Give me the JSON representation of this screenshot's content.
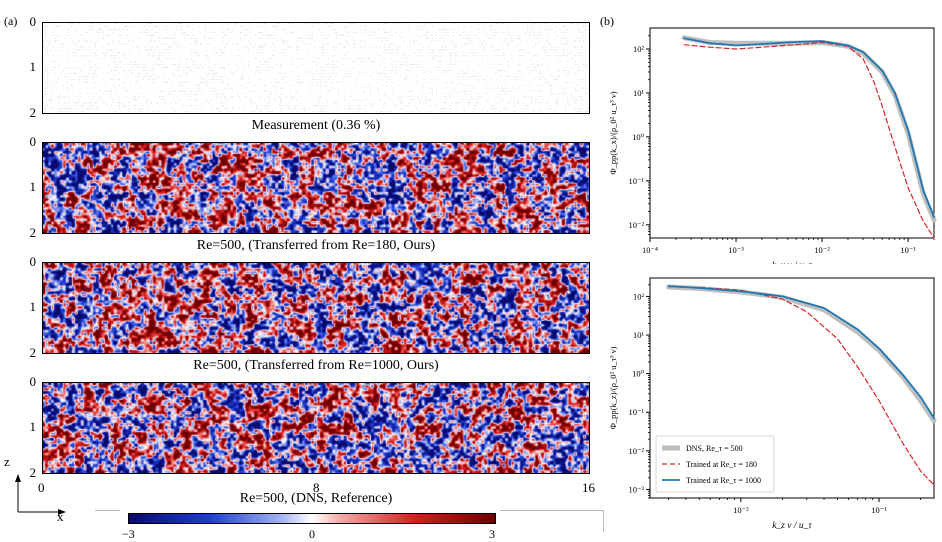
{
  "panel_a_label": "(a)",
  "panel_b_label": "(b)",
  "fields": [
    {
      "caption": "Measurement (0.36 %)",
      "kind": "sparse"
    },
    {
      "caption": "Re=500, (Transferred from Re=180, Ours)",
      "kind": "dense"
    },
    {
      "caption": "Re=500, (Transferred from Re=1000, Ours)",
      "kind": "dense"
    },
    {
      "caption": "Re=500, (DNS, Reference)",
      "kind": "dense"
    }
  ],
  "field_y_ticks": [
    "0",
    "1",
    "2"
  ],
  "field_x_ticks": [
    "0",
    "8",
    "16"
  ],
  "axis_labels": {
    "z": "z",
    "x": "x"
  },
  "colorbar": {
    "ticks": [
      "−3",
      "0",
      "3"
    ],
    "min_color": "#0a0a6e",
    "mid_color": "#ffffff",
    "max_color": "#6e0000"
  },
  "colors": {
    "dns": "#bfbfbf",
    "trained180": "#d62728",
    "trained1000": "#1f77b4"
  },
  "chart_data": [
    {
      "type": "line",
      "xscale": "log",
      "yscale": "log",
      "xlabel": "k_x ν / u_τ",
      "ylabel": "Φ_pp(k_x)/(ρ_0² u_τ³ ν)",
      "xlim": [
        0.0001,
        0.2
      ],
      "ylim": [
        0.005,
        300
      ],
      "xtick_labels": [
        "10⁻⁴",
        "10⁻³",
        "10⁻²",
        "10⁻¹"
      ],
      "ytick_labels": [
        "10²",
        "10¹",
        "10⁰",
        "10⁻¹",
        "10⁻²"
      ],
      "series": [
        {
          "key": "dns",
          "x": [
            0.00025,
            0.0005,
            0.001,
            0.002,
            0.005,
            0.01,
            0.02,
            0.03,
            0.05,
            0.07,
            0.1,
            0.15,
            0.2
          ],
          "y": [
            180,
            140,
            135,
            135,
            135,
            140,
            115,
            80,
            30,
            9,
            1.2,
            0.05,
            0.013
          ]
        },
        {
          "key": "trained180",
          "x": [
            0.00025,
            0.0005,
            0.001,
            0.002,
            0.005,
            0.01,
            0.02,
            0.03,
            0.04,
            0.05,
            0.07,
            0.1,
            0.15,
            0.2
          ],
          "y": [
            125,
            110,
            100,
            110,
            125,
            140,
            115,
            60,
            18,
            5,
            0.6,
            0.07,
            0.012,
            0.005
          ]
        },
        {
          "key": "trained1000",
          "x": [
            0.00025,
            0.0005,
            0.001,
            0.002,
            0.005,
            0.01,
            0.02,
            0.03,
            0.05,
            0.07,
            0.1,
            0.15,
            0.2
          ],
          "y": [
            175,
            135,
            120,
            130,
            145,
            150,
            120,
            85,
            32,
            10,
            1.4,
            0.06,
            0.015
          ]
        }
      ]
    },
    {
      "type": "line",
      "xscale": "log",
      "yscale": "log",
      "xlabel": "k_z ν / u_τ",
      "ylabel": "Φ_pp(k_z)/(ρ_0² u_τ³ ν)",
      "xlim": [
        0.0022,
        0.25
      ],
      "ylim": [
        0.0006,
        300
      ],
      "xtick_labels": [
        "10⁻²",
        "10⁻¹"
      ],
      "ytick_labels": [
        "10²",
        "10¹",
        "10⁰",
        "10⁻¹",
        "10⁻²",
        "10⁻³"
      ],
      "legend": {
        "placement": "lower-left",
        "entries": [
          "DNS, Re_τ = 500",
          "Trained at Re_τ = 180",
          "Trained at Re_τ = 1000"
        ]
      },
      "series": [
        {
          "key": "dns",
          "name": "DNS, Re_τ = 500",
          "x": [
            0.003,
            0.005,
            0.01,
            0.02,
            0.04,
            0.07,
            0.1,
            0.15,
            0.2,
            0.25
          ],
          "y": [
            175,
            160,
            130,
            95,
            45,
            12,
            4,
            0.8,
            0.2,
            0.06
          ]
        },
        {
          "key": "trained180",
          "name": "Trained at Re_τ = 180",
          "x": [
            0.003,
            0.005,
            0.01,
            0.02,
            0.03,
            0.05,
            0.07,
            0.1,
            0.15,
            0.2,
            0.25
          ],
          "y": [
            180,
            170,
            145,
            85,
            40,
            8,
            1.5,
            0.2,
            0.015,
            0.003,
            0.0013
          ]
        },
        {
          "key": "trained1000",
          "name": "Trained at Re_τ = 1000",
          "x": [
            0.003,
            0.005,
            0.01,
            0.02,
            0.04,
            0.07,
            0.1,
            0.15,
            0.2,
            0.25
          ],
          "y": [
            185,
            165,
            135,
            100,
            50,
            14,
            4.5,
            0.9,
            0.25,
            0.07
          ]
        }
      ]
    }
  ]
}
